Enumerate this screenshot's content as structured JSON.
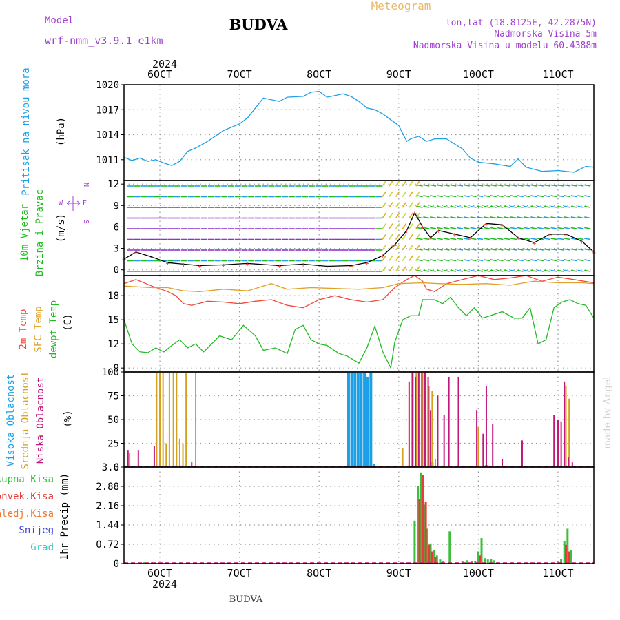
{
  "header": {
    "model_label": "Model",
    "model_name": "wrf-nmm_v3.9.1 e1km",
    "location": "BUDVA",
    "product": "Meteogram",
    "coords": "lon,lat (18.8125E, 42.2875N)",
    "elevation": "Nadmorska Visina 5m",
    "model_elevation": "Nadmorska Visina u modelu 60.4388m",
    "credit": "made by Angel",
    "footer_location": "BUDVA",
    "year": "2024"
  },
  "colors": {
    "pressure": "#1ea0e6",
    "temp2m": "#ee4a3a",
    "sfc_temp": "#e0a02a",
    "dewpoint": "#22bb22",
    "cloud_high": "#1ea0e6",
    "cloud_mid": "#d4a020",
    "cloud_low": "#c01878",
    "precip_total": "#3cbf3c",
    "precip_conv": "#e83a3a",
    "precip_frozen": "#ee7a30",
    "snow": "#4040e0",
    "graupel": "#30c8c8",
    "wind_label": "#a040d0",
    "header": "#a040d0"
  },
  "chart_data": {
    "type": "line",
    "x_range_days": [
      5.55,
      11.45
    ],
    "x_ticks": [
      "6OCT",
      "7OCT",
      "8OCT",
      "9OCT",
      "10OCT",
      "11OCT"
    ],
    "panels": [
      {
        "name": "pressure",
        "ylabel": [
          "Pritisak na nivou mora",
          "(hPa)"
        ],
        "ylim": [
          1008.5,
          1020
        ],
        "yticks": [
          1011,
          1014,
          1017,
          1020
        ],
        "series": [
          {
            "name": "Pritisak na nivou mora",
            "color": "#1ea0e6",
            "x": [
              5.55,
              5.65,
              5.75,
              5.85,
              5.95,
              6.05,
              6.15,
              6.25,
              6.35,
              6.45,
              6.6,
              6.8,
              7.0,
              7.1,
              7.2,
              7.3,
              7.4,
              7.5,
              7.6,
              7.8,
              7.9,
              8.0,
              8.1,
              8.2,
              8.3,
              8.4,
              8.5,
              8.6,
              8.7,
              8.8,
              8.9,
              9.0,
              9.1,
              9.15,
              9.25,
              9.35,
              9.45,
              9.6,
              9.8,
              9.9,
              10.0,
              10.2,
              10.4,
              10.5,
              10.6,
              10.8,
              11.0,
              11.2,
              11.35,
              11.45
            ],
            "y": [
              1011.3,
              1010.9,
              1011.2,
              1010.8,
              1011.0,
              1010.6,
              1010.3,
              1010.8,
              1012.0,
              1012.4,
              1013.2,
              1014.5,
              1015.3,
              1016.0,
              1017.2,
              1018.4,
              1018.2,
              1018.0,
              1018.5,
              1018.6,
              1019.1,
              1019.2,
              1018.5,
              1018.7,
              1018.9,
              1018.6,
              1018.0,
              1017.2,
              1017.0,
              1016.5,
              1015.8,
              1015.1,
              1013.2,
              1013.5,
              1013.8,
              1013.2,
              1013.5,
              1013.5,
              1012.3,
              1011.2,
              1010.7,
              1010.5,
              1010.2,
              1011.1,
              1010.1,
              1009.6,
              1009.7,
              1009.5,
              1010.2,
              1010.1
            ]
          }
        ]
      },
      {
        "name": "wind",
        "ylabel": [
          "10m Vjetar",
          "Brzina i Pravac",
          "(m/s)"
        ],
        "compass": [
          "W",
          "E",
          "N",
          "S"
        ],
        "ylim": [
          -0.8,
          12.5
        ],
        "yticks": [
          0,
          3,
          6,
          9,
          12
        ],
        "series": [
          {
            "name": "Brzina",
            "color": "#000000",
            "x": [
              5.55,
              5.7,
              5.9,
              6.1,
              6.3,
              6.5,
              6.8,
              7.1,
              7.5,
              7.8,
              8.1,
              8.4,
              8.6,
              8.8,
              8.95,
              9.1,
              9.2,
              9.3,
              9.4,
              9.5,
              9.7,
              9.9,
              10.1,
              10.3,
              10.5,
              10.7,
              10.9,
              11.1,
              11.3,
              11.45
            ],
            "y": [
              1.5,
              2.5,
              1.8,
              1.0,
              0.8,
              0.6,
              0.7,
              0.9,
              0.6,
              0.8,
              0.5,
              0.6,
              1.0,
              2.0,
              3.5,
              5.5,
              8.0,
              6.0,
              4.5,
              5.5,
              5.0,
              4.5,
              6.5,
              6.3,
              4.5,
              3.8,
              5.0,
              5.0,
              4.0,
              2.5
            ]
          }
        ]
      },
      {
        "name": "temperature",
        "ylabel": [
          "2m Temp",
          "SFC Temp",
          "dewpt Temp",
          "(C)"
        ],
        "ylim": [
          8.5,
          20.5
        ],
        "yticks": [
          9,
          12,
          15,
          18
        ],
        "series": [
          {
            "name": "2m Temp",
            "color": "#ee4a3a",
            "x": [
              5.55,
              5.7,
              5.9,
              6.1,
              6.2,
              6.3,
              6.4,
              6.6,
              6.8,
              7.0,
              7.2,
              7.4,
              7.6,
              7.8,
              8.0,
              8.2,
              8.4,
              8.6,
              8.8,
              8.95,
              9.1,
              9.2,
              9.3,
              9.35,
              9.45,
              9.6,
              9.8,
              10.0,
              10.2,
              10.4,
              10.6,
              10.8,
              11.0,
              11.2,
              11.45
            ],
            "y": [
              19.5,
              20.0,
              19.2,
              18.5,
              18.0,
              17.0,
              16.8,
              17.3,
              17.2,
              17.0,
              17.3,
              17.5,
              16.8,
              16.5,
              17.5,
              18.0,
              17.5,
              17.2,
              17.5,
              19.0,
              20.0,
              20.5,
              19.8,
              18.8,
              18.5,
              19.5,
              20.0,
              20.5,
              20.0,
              20.2,
              20.5,
              19.8,
              20.3,
              20.0,
              19.6
            ]
          },
          {
            "name": "SFC Temp",
            "color": "#e0a02a",
            "x": [
              5.55,
              5.9,
              6.1,
              6.3,
              6.5,
              6.8,
              7.1,
              7.4,
              7.6,
              7.9,
              8.2,
              8.5,
              8.8,
              9.0,
              9.3,
              9.5,
              9.8,
              10.1,
              10.4,
              10.7,
              11.0,
              11.3,
              11.45
            ],
            "y": [
              19.2,
              19.0,
              19.0,
              18.6,
              18.5,
              18.8,
              18.6,
              19.5,
              18.8,
              19.0,
              18.9,
              18.8,
              19.0,
              19.5,
              19.6,
              19.5,
              19.4,
              19.5,
              19.3,
              19.8,
              19.6,
              19.6,
              19.5
            ]
          },
          {
            "name": "dewpt Temp",
            "color": "#22bb22",
            "x": [
              5.55,
              5.65,
              5.75,
              5.85,
              5.95,
              6.05,
              6.15,
              6.25,
              6.35,
              6.45,
              6.55,
              6.65,
              6.75,
              6.9,
              7.05,
              7.2,
              7.3,
              7.45,
              7.6,
              7.7,
              7.8,
              7.9,
              8.0,
              8.1,
              8.25,
              8.35,
              8.5,
              8.6,
              8.7,
              8.8,
              8.9,
              8.95,
              9.05,
              9.15,
              9.25,
              9.3,
              9.45,
              9.55,
              9.65,
              9.75,
              9.85,
              9.95,
              10.05,
              10.15,
              10.3,
              10.45,
              10.55,
              10.65,
              10.75,
              10.85,
              10.95,
              11.05,
              11.15,
              11.25,
              11.35,
              11.45
            ],
            "y": [
              15.0,
              12.0,
              11.0,
              10.9,
              11.5,
              11.0,
              11.8,
              12.5,
              11.5,
              12.0,
              11.0,
              12.0,
              13.0,
              12.5,
              14.3,
              13.0,
              11.2,
              11.5,
              10.8,
              13.8,
              14.3,
              12.5,
              12.0,
              11.8,
              10.8,
              10.5,
              9.6,
              11.5,
              14.2,
              11.0,
              9.0,
              12.2,
              15.0,
              15.5,
              15.5,
              17.5,
              17.5,
              17.0,
              17.8,
              16.5,
              15.5,
              16.5,
              15.2,
              15.5,
              16.0,
              15.2,
              15.2,
              16.5,
              12.0,
              12.5,
              16.5,
              17.2,
              17.5,
              17.0,
              16.8,
              15.2
            ]
          }
        ]
      },
      {
        "name": "cloud",
        "ylabel": [
          "Visoka Oblacnost",
          "Srednja Oblacnost",
          "Niska Oblacnost",
          "(%)"
        ],
        "ylim": [
          0,
          100
        ],
        "yticks": [
          0,
          25,
          50,
          75,
          100
        ],
        "series": [
          {
            "name": "Visoka Oblacnost",
            "color": "#1ea0e6",
            "x": [
              8.37,
              8.41,
              8.45,
              8.49,
              8.53,
              8.57,
              8.61,
              8.65,
              8.69,
              9.42,
              10.1
            ],
            "y": [
              100,
              100,
              100,
              100,
              100,
              100,
              95,
              100,
              3,
              5,
              2
            ]
          },
          {
            "name": "Srednja Oblacnost",
            "color": "#d4a020",
            "x": [
              5.62,
              5.96,
              6.0,
              6.04,
              6.08,
              6.12,
              6.17,
              6.21,
              6.25,
              6.29,
              6.33,
              6.45,
              9.05,
              9.18,
              9.22,
              9.26,
              9.3,
              9.34,
              9.38,
              9.42,
              9.46,
              10.0,
              11.1,
              11.14
            ],
            "y": [
              15,
              100,
              100,
              100,
              25,
              100,
              100,
              100,
              30,
              25,
              100,
              100,
              20,
              100,
              100,
              100,
              100,
              100,
              85,
              80,
              8,
              42,
              85,
              72
            ]
          },
          {
            "name": "Niska Oblacnost",
            "color": "#c01878",
            "x": [
              5.6,
              5.73,
              5.93,
              6.4,
              9.13,
              9.17,
              9.21,
              9.25,
              9.29,
              9.33,
              9.37,
              9.4,
              9.49,
              9.57,
              9.63,
              9.75,
              9.98,
              10.06,
              10.1,
              10.18,
              10.3,
              10.55,
              10.95,
              11.0,
              11.04,
              11.08,
              11.13,
              11.18
            ],
            "y": [
              18,
              18,
              22,
              5,
              90,
              100,
              95,
              100,
              100,
              100,
              95,
              60,
              75,
              55,
              95,
              95,
              60,
              35,
              85,
              45,
              8,
              28,
              55,
              50,
              48,
              90,
              10,
              5
            ]
          }
        ]
      },
      {
        "name": "precip",
        "ylabel": [
          "1hr Precip (mm)"
        ],
        "legend": [
          "Ukupna Kisa",
          "Konvek.Kisa",
          "Zaledj.Kisa",
          "Snijeg",
          "Grad"
        ],
        "ylim": [
          0,
          3.6
        ],
        "yticks": [
          0,
          0.72,
          1.44,
          2.16,
          2.88,
          3.6
        ],
        "series": [
          {
            "name": "Ukupna Kisa",
            "color": "#3cbf3c",
            "x": [
              5.8,
              5.9,
              9.2,
              9.24,
              9.28,
              9.32,
              9.36,
              9.4,
              9.44,
              9.48,
              9.52,
              9.56,
              9.64,
              9.8,
              9.86,
              9.92,
              9.96,
              10.0,
              10.04,
              10.08,
              10.12,
              10.16,
              10.2,
              11.0,
              11.04,
              11.08,
              11.12,
              11.16
            ],
            "y": [
              0.05,
              0.05,
              1.6,
              2.9,
              3.4,
              2.2,
              1.3,
              0.75,
              0.5,
              0.3,
              0.15,
              0.1,
              1.2,
              0.1,
              0.12,
              0.08,
              0.1,
              0.45,
              0.95,
              0.2,
              0.15,
              0.18,
              0.12,
              0.1,
              0.18,
              0.85,
              1.3,
              0.5
            ]
          },
          {
            "name": "Konvek.Kisa",
            "color": "#e83a3a",
            "x": [
              9.26,
              9.3,
              9.34,
              9.38,
              9.42,
              9.46,
              10.02,
              11.1,
              11.14
            ],
            "y": [
              2.4,
              3.3,
              2.3,
              0.7,
              0.45,
              0.25,
              0.3,
              0.7,
              0.45
            ]
          }
        ]
      }
    ]
  }
}
